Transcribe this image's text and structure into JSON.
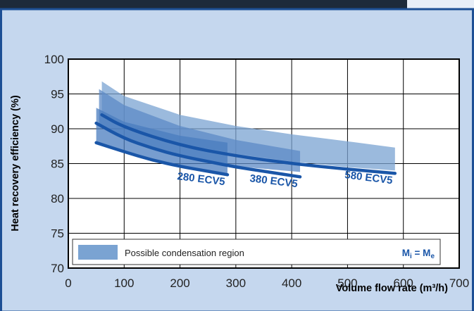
{
  "chart_data": {
    "type": "line",
    "xlabel": "Volume flow rate (m³/h)",
    "ylabel": "Heat recovery efficiency (%)",
    "xlim": [
      0,
      700
    ],
    "ylim": [
      70,
      100
    ],
    "x_ticks": [
      0,
      100,
      200,
      300,
      400,
      500,
      600,
      700
    ],
    "y_ticks": [
      70,
      75,
      80,
      85,
      90,
      95,
      100
    ],
    "grid": true,
    "legend": {
      "position": "bottom",
      "entries": [
        "Possible condensation region"
      ],
      "condition": "Mi = Me"
    },
    "condensation_regions": [
      {
        "name": "580 ECV5",
        "color": "#7aa3d2",
        "x": [
          60,
          100,
          200,
          300,
          400,
          500,
          585
        ],
        "upper": [
          96.8,
          94.7,
          92.0,
          90.4,
          89.2,
          88.2,
          87.3
        ],
        "lower": [
          91.8,
          90.2,
          87.9,
          86.4,
          85.3,
          84.5,
          84.0
        ]
      },
      {
        "name": "380 ECV5",
        "color": "#5c8ac6",
        "x": [
          55,
          100,
          200,
          300,
          415
        ],
        "upper": [
          95.7,
          93.4,
          90.4,
          88.4,
          86.8
        ],
        "lower": [
          90.4,
          88.5,
          86.0,
          84.6,
          83.8
        ]
      },
      {
        "name": "280 ECV5",
        "color": "#4a7cbf",
        "x": [
          50,
          100,
          200,
          285
        ],
        "upper": [
          93.0,
          91.0,
          89.0,
          88.0
        ],
        "lower": [
          88.2,
          86.8,
          84.6,
          83.5
        ]
      }
    ],
    "series": [
      {
        "name": "280 ECV5",
        "color": "#1a56a8",
        "x": [
          50,
          100,
          150,
          200,
          250,
          285
        ],
        "y": [
          88.0,
          86.7,
          85.5,
          84.6,
          83.9,
          83.4
        ]
      },
      {
        "name": "380 ECV5",
        "color": "#1a56a8",
        "x": [
          50,
          100,
          150,
          200,
          250,
          300,
          350,
          415
        ],
        "y": [
          90.8,
          88.6,
          87.2,
          86.1,
          85.3,
          84.5,
          83.9,
          83.1
        ]
      },
      {
        "name": "580 ECV5",
        "color": "#1a56a8",
        "x": [
          60,
          100,
          200,
          300,
          400,
          500,
          585
        ],
        "y": [
          92.0,
          90.2,
          87.6,
          86.1,
          85.0,
          84.2,
          83.6
        ]
      }
    ],
    "colors": {
      "background": "#c5d7ee",
      "plot_area": "#ffffff",
      "frame": "#1d4f94",
      "label_text": "#1a56a8"
    }
  }
}
